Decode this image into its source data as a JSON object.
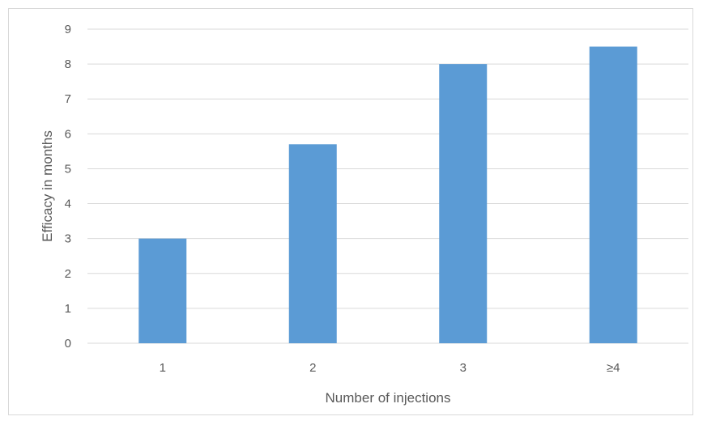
{
  "chart_data": {
    "type": "bar",
    "categories": [
      "1",
      "2",
      "3",
      "≥4"
    ],
    "values": [
      3.0,
      5.7,
      8.0,
      8.5
    ],
    "xlabel": "Number of injections",
    "ylabel": "Efficacy in months",
    "ylim": [
      0,
      9
    ],
    "yticks": [
      0,
      1,
      2,
      3,
      4,
      5,
      6,
      7,
      8,
      9
    ],
    "grid": true,
    "legend": "none",
    "colors": {
      "bar": "#5b9bd5",
      "grid": "#d9d9d9",
      "text": "#595959"
    }
  }
}
